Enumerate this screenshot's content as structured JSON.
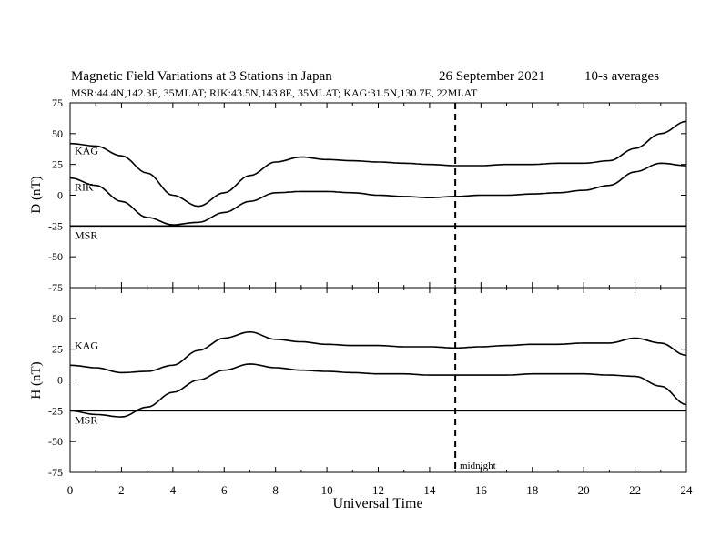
{
  "header": {
    "title": "Magnetic Field Variations at 3 Stations in Japan",
    "date": "26 September 2021",
    "averaging": "10-s averages",
    "stations_line": "MSR:44.4N,142.3E, 35MLAT;  RIK:43.5N,143.8E, 35MLAT;  KAG:31.5N,130.7E, 22MLAT"
  },
  "chart_data": [
    {
      "type": "line",
      "panel": "D",
      "ylabel": "D (nT)",
      "xlim": [
        0,
        24
      ],
      "ylim": [
        -75,
        75
      ],
      "yticks": [
        -75,
        -50,
        -25,
        0,
        25,
        50,
        75
      ],
      "vline": {
        "x": 15,
        "style": "dashed"
      },
      "series": [
        {
          "name": "KAG",
          "x": [
            0,
            1,
            2,
            3,
            4,
            5,
            6,
            7,
            8,
            9,
            10,
            11,
            12,
            13,
            14,
            15,
            16,
            17,
            18,
            19,
            20,
            21,
            22,
            23,
            24
          ],
          "values": [
            42,
            40,
            32,
            18,
            0,
            -9,
            2,
            16,
            27,
            31,
            29,
            28,
            27,
            26,
            25,
            24,
            24,
            25,
            25,
            26,
            26,
            28,
            38,
            50,
            60
          ]
        },
        {
          "name": "RIK",
          "x": [
            0,
            1,
            2,
            3,
            4,
            5,
            6,
            7,
            8,
            9,
            10,
            11,
            12,
            13,
            14,
            15,
            16,
            17,
            18,
            19,
            20,
            21,
            22,
            23,
            24
          ],
          "values": [
            14,
            8,
            -5,
            -18,
            -24,
            -22,
            -14,
            -5,
            2,
            3,
            3,
            2,
            0,
            -1,
            -2,
            -1,
            0,
            0,
            1,
            2,
            4,
            8,
            19,
            26,
            24
          ]
        },
        {
          "name": "MSR",
          "x": [
            0,
            4,
            8,
            12,
            16,
            20,
            24
          ],
          "values": [
            -25,
            -25,
            -25,
            -25,
            -25,
            -25,
            -25
          ]
        }
      ]
    },
    {
      "type": "line",
      "panel": "H",
      "ylabel": "H (nT)",
      "xlim": [
        0,
        24
      ],
      "ylim": [
        -75,
        75
      ],
      "yticks": [
        -75,
        -50,
        -25,
        0,
        25,
        50,
        75
      ],
      "vline": {
        "x": 15,
        "style": "dashed",
        "label": "midnight"
      },
      "xlabel": "Universal Time",
      "xticks": [
        0,
        2,
        4,
        6,
        8,
        10,
        12,
        14,
        16,
        18,
        20,
        22,
        24
      ],
      "series": [
        {
          "name": "KAG",
          "x": [
            0,
            1,
            2,
            3,
            4,
            5,
            6,
            7,
            8,
            9,
            10,
            11,
            12,
            13,
            14,
            15,
            16,
            17,
            18,
            19,
            20,
            21,
            22,
            23,
            24
          ],
          "values": [
            12,
            10,
            6,
            7,
            12,
            24,
            34,
            39,
            33,
            31,
            29,
            28,
            28,
            27,
            27,
            26,
            27,
            28,
            29,
            29,
            30,
            30,
            34,
            30,
            20
          ]
        },
        {
          "name": "RIK",
          "x": [
            0,
            1,
            2,
            3,
            4,
            5,
            6,
            7,
            8,
            9,
            10,
            11,
            12,
            13,
            14,
            15,
            16,
            17,
            18,
            19,
            20,
            21,
            22,
            23,
            24
          ],
          "values": [
            -25,
            -28,
            -30,
            -22,
            -10,
            0,
            8,
            13,
            10,
            8,
            7,
            6,
            5,
            5,
            4,
            4,
            4,
            4,
            5,
            5,
            5,
            4,
            3,
            -5,
            -20
          ]
        },
        {
          "name": "MSR",
          "x": [
            0,
            4,
            8,
            12,
            16,
            20,
            24
          ],
          "values": [
            -25,
            -25,
            -25,
            -25,
            -25,
            -25,
            -25
          ]
        }
      ]
    }
  ]
}
